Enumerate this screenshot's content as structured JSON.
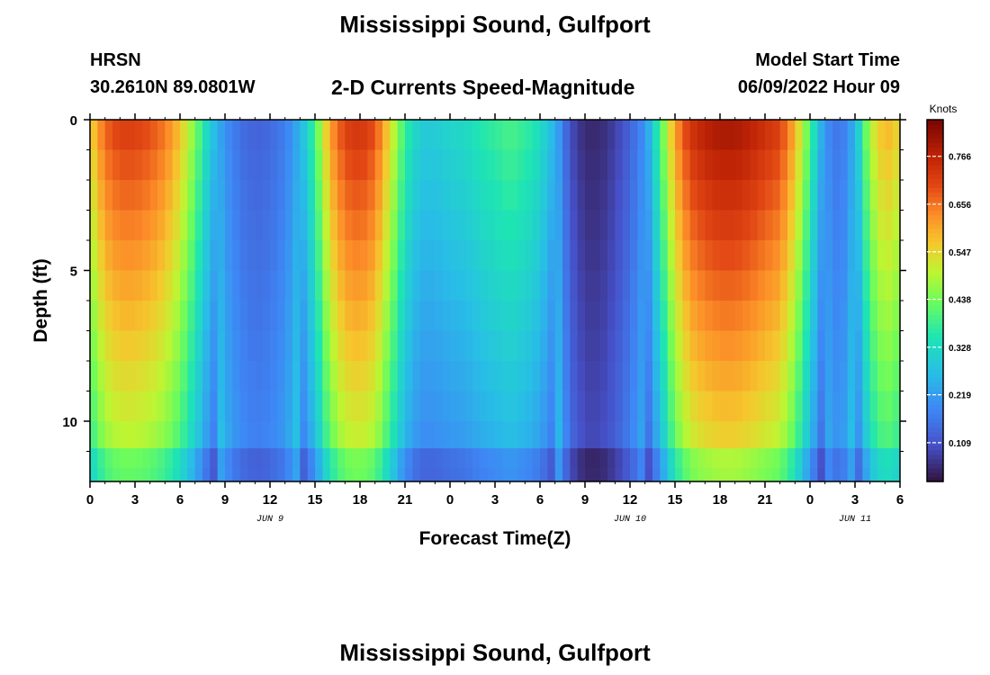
{
  "header": {
    "title": "Mississippi Sound, Gulfport",
    "station_id": "HRSN",
    "station_coords": "30.2610N  89.0801W",
    "subtitle": "2-D Currents Speed-Magnitude",
    "model_start_label": "Model Start Time",
    "model_start_value": "06/09/2022 Hour 09"
  },
  "footer": {
    "title": "Mississippi Sound, Gulfport"
  },
  "chart_data": {
    "type": "heatmap",
    "title": "2-D Currents Speed-Magnitude",
    "xlabel": "Forecast Time(Z)",
    "ylabel": "Depth (ft)",
    "colorbar_label": "Knots",
    "colorbar_ticks": [
      0.109,
      0.219,
      0.328,
      0.438,
      0.547,
      0.656,
      0.766
    ],
    "colorbar_tick_labels": [
      "0.109",
      "0.219",
      "0.328",
      "0.438",
      "0.547",
      "0.656",
      "0.766"
    ],
    "colorbar_range": [
      0.02,
      0.85
    ],
    "x_range_hours": [
      0,
      54
    ],
    "x_tick_hours": [
      0,
      3,
      6,
      9,
      12,
      15,
      18,
      21,
      24,
      27,
      30,
      33,
      36,
      39,
      42,
      45,
      48,
      51,
      54
    ],
    "x_tick_labels": [
      "0",
      "3",
      "6",
      "9",
      "12",
      "15",
      "18",
      "21",
      "0",
      "3",
      "6",
      "9",
      "12",
      "15",
      "18",
      "21",
      "0",
      "3",
      "6"
    ],
    "date_labels": [
      {
        "hour": 12,
        "text": "JUN 9"
      },
      {
        "hour": 36,
        "text": "JUN 10"
      },
      {
        "hour": 51,
        "text": "JUN 11"
      }
    ],
    "y_range_ft": [
      0,
      12
    ],
    "y_ticks": [
      0,
      5,
      10
    ],
    "y_tick_labels": [
      "0",
      "5",
      "10"
    ],
    "time_step_hours": 0.5,
    "depth_levels_ft": [
      0.5,
      1.5,
      2.5,
      3.5,
      4.5,
      5.5,
      6.5,
      7.5,
      8.5,
      9.5,
      10.5,
      11.3,
      11.8
    ],
    "surface_speed_knots": {
      "hours": [
        0,
        1,
        2,
        3,
        4,
        5,
        6,
        7,
        8,
        9,
        10,
        11,
        12,
        13,
        14,
        15,
        16,
        17,
        18,
        19,
        20,
        21,
        22,
        23,
        24,
        25,
        26,
        27,
        28,
        29,
        30,
        31,
        32,
        33,
        34,
        35,
        36,
        37,
        38,
        39,
        40,
        41,
        42,
        43,
        44,
        45,
        46,
        47,
        48,
        49,
        50,
        51,
        52,
        53,
        54
      ],
      "values": [
        0.55,
        0.68,
        0.72,
        0.72,
        0.7,
        0.66,
        0.58,
        0.45,
        0.3,
        0.2,
        0.15,
        0.13,
        0.14,
        0.17,
        0.25,
        0.4,
        0.62,
        0.72,
        0.74,
        0.7,
        0.55,
        0.38,
        0.3,
        0.3,
        0.32,
        0.33,
        0.36,
        0.38,
        0.4,
        0.38,
        0.34,
        0.25,
        0.1,
        0.05,
        0.05,
        0.08,
        0.13,
        0.2,
        0.4,
        0.62,
        0.74,
        0.78,
        0.8,
        0.8,
        0.78,
        0.75,
        0.72,
        0.6,
        0.4,
        0.2,
        0.15,
        0.25,
        0.5,
        0.6,
        0.55
      ]
    }
  }
}
